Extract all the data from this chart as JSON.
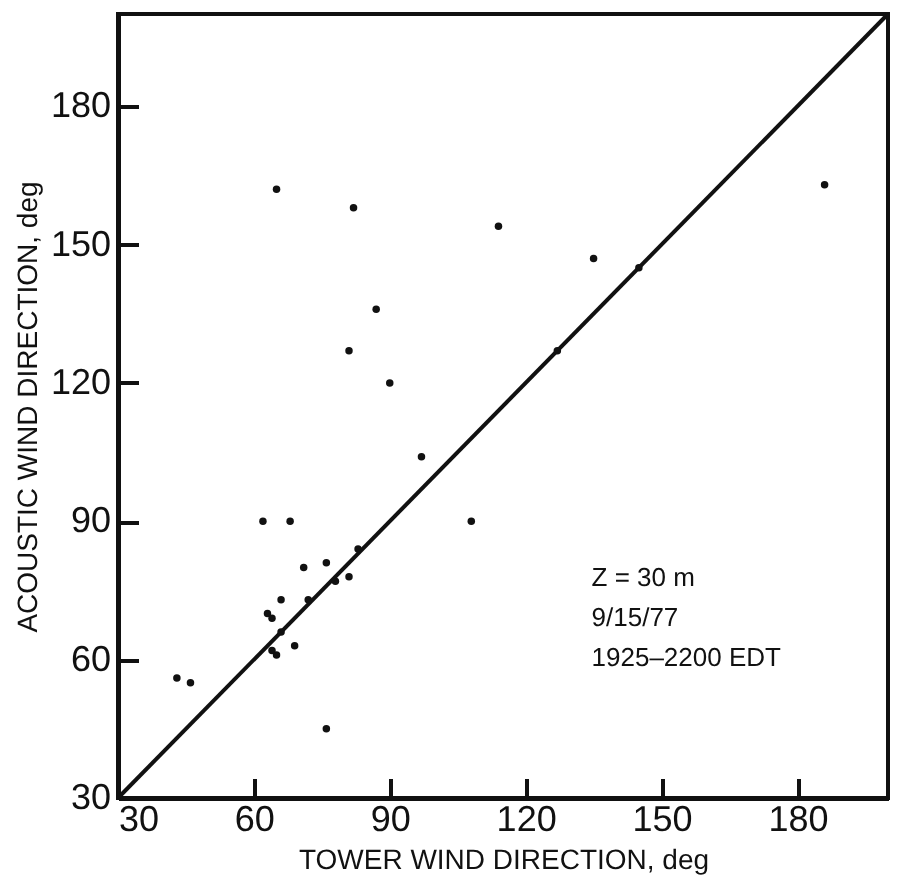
{
  "chart_data": {
    "type": "scatter",
    "xlabel": "TOWER WIND DIRECTION, deg",
    "ylabel": "ACOUSTIC WIND DIRECTION, deg",
    "xlim": [
      30,
      200
    ],
    "ylim": [
      30,
      200
    ],
    "xticks": [
      30,
      60,
      90,
      120,
      150,
      180
    ],
    "yticks": [
      30,
      60,
      90,
      120,
      150,
      180
    ],
    "grid": false,
    "annotations": [
      "Z = 30 m",
      "9/15/77",
      "1925–2200 EDT"
    ],
    "series": [
      {
        "color": "#111111",
        "marker": "circle",
        "x": [
          65,
          82,
          186,
          114,
          135,
          145,
          87,
          81,
          90,
          127,
          97,
          62,
          68,
          108,
          83,
          71,
          76,
          78,
          81,
          72,
          66,
          63,
          64,
          66,
          69,
          64,
          65,
          43,
          46,
          76
        ],
        "values": [
          162,
          158,
          163,
          154,
          147,
          145,
          136,
          127,
          120,
          127,
          104,
          90,
          90,
          90,
          84,
          80,
          81,
          77,
          78,
          73,
          73,
          70,
          69,
          66,
          63,
          62,
          61,
          56,
          55,
          45
        ]
      },
      {
        "type": "line",
        "marker": "none",
        "color": "#111111",
        "x": [
          30,
          200
        ],
        "values": [
          30,
          200
        ]
      }
    ]
  }
}
